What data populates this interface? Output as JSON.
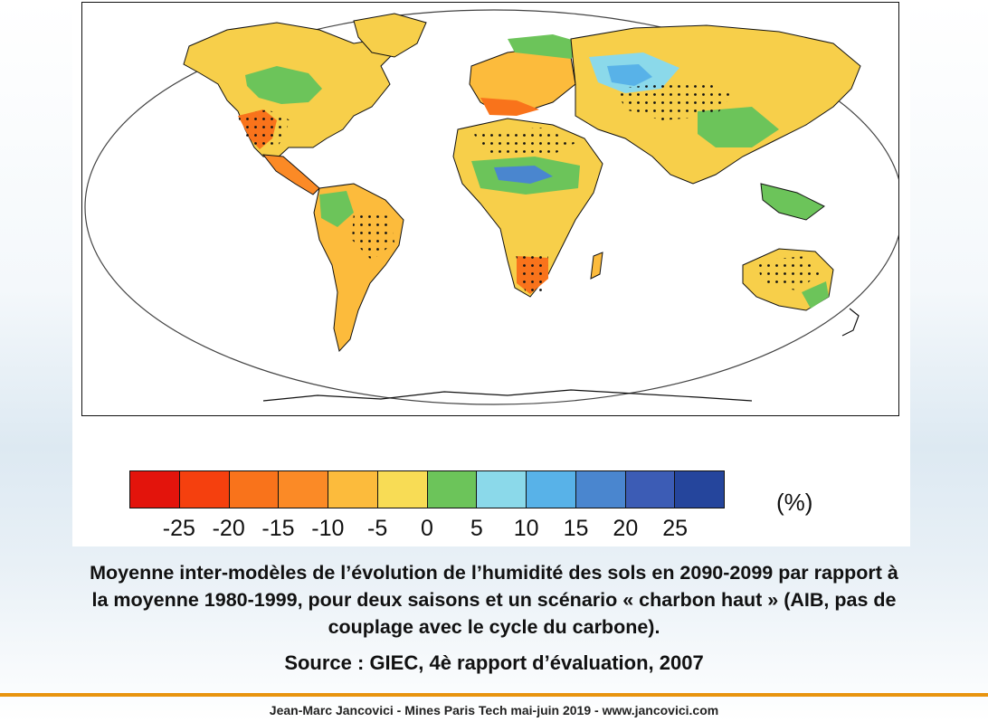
{
  "legend": {
    "colors": [
      "#e3140c",
      "#f5400e",
      "#f9731b",
      "#fb8a26",
      "#fcbb3c",
      "#f8dc55",
      "#6cc45a",
      "#8bd9ea",
      "#58b2e8",
      "#4a86cf",
      "#3c5cb5",
      "#25459c"
    ],
    "ticks": [
      "-25",
      "-20",
      "-15",
      "-10",
      "-5",
      "0",
      "5",
      "10",
      "15",
      "20",
      "25"
    ],
    "unit": "(%)"
  },
  "caption": {
    "line1": "Moyenne inter-modèles de l’évolution de l’humidité des sols en 2090-2099 par rapport à",
    "line2": "la moyenne 1980-1999, pour deux saisons et un scénario « charbon haut » (AIB, pas de",
    "line3": "couplage avec le cycle du carbone)."
  },
  "source": "Source : GIEC, 4è rapport d’évaluation, 2007",
  "footer": "Jean-Marc Jancovici - Mines Paris Tech mai-juin 2019 - www.jancovici.com"
}
